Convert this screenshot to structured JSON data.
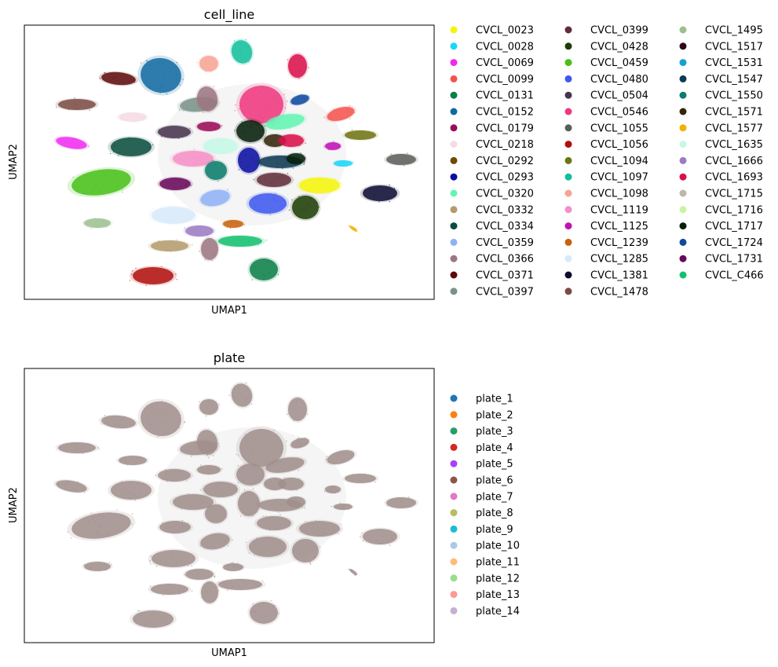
{
  "chart_data": [
    {
      "type": "scatter",
      "title": "cell_line",
      "xlabel": "UMAP1",
      "ylabel": "UMAP2",
      "legend_position": "right",
      "legend_columns": 3,
      "categories": [
        {
          "name": "CVCL_0023",
          "color": "#f5f50a"
        },
        {
          "name": "CVCL_0028",
          "color": "#1bd6f7"
        },
        {
          "name": "CVCL_0069",
          "color": "#f02bf0"
        },
        {
          "name": "CVCL_0099",
          "color": "#f4524f"
        },
        {
          "name": "CVCL_0131",
          "color": "#0a7f48"
        },
        {
          "name": "CVCL_0152",
          "color": "#116aa1"
        },
        {
          "name": "CVCL_0179",
          "color": "#9b0b58"
        },
        {
          "name": "CVCL_0218",
          "color": "#f6dbe3"
        },
        {
          "name": "CVCL_0292",
          "color": "#6f4a08"
        },
        {
          "name": "CVCL_0293",
          "color": "#0a0ea1"
        },
        {
          "name": "CVCL_0320",
          "color": "#62f5b2"
        },
        {
          "name": "CVCL_0332",
          "color": "#b49a6c"
        },
        {
          "name": "CVCL_0334",
          "color": "#0b4d3e"
        },
        {
          "name": "CVCL_0359",
          "color": "#8fb2f5"
        },
        {
          "name": "CVCL_0366",
          "color": "#9c7680"
        },
        {
          "name": "CVCL_0371",
          "color": "#5e0a0a"
        },
        {
          "name": "CVCL_0397",
          "color": "#7a9289"
        },
        {
          "name": "CVCL_0399",
          "color": "#5f2d3a"
        },
        {
          "name": "CVCL_0428",
          "color": "#1c3d05"
        },
        {
          "name": "CVCL_0459",
          "color": "#46c017"
        },
        {
          "name": "CVCL_0480",
          "color": "#3e58ef"
        },
        {
          "name": "CVCL_0504",
          "color": "#47344d"
        },
        {
          "name": "CVCL_0546",
          "color": "#f03780"
        },
        {
          "name": "CVCL_1055",
          "color": "#5a5e58"
        },
        {
          "name": "CVCL_1056",
          "color": "#b20f0d"
        },
        {
          "name": "CVCL_1094",
          "color": "#6e7413"
        },
        {
          "name": "CVCL_1097",
          "color": "#10bf9c"
        },
        {
          "name": "CVCL_1098",
          "color": "#f7a393"
        },
        {
          "name": "CVCL_1119",
          "color": "#f58fc8"
        },
        {
          "name": "CVCL_1125",
          "color": "#c012b5"
        },
        {
          "name": "CVCL_1239",
          "color": "#c9610a"
        },
        {
          "name": "CVCL_1285",
          "color": "#d8e9f9"
        },
        {
          "name": "CVCL_1381",
          "color": "#0a0a32"
        },
        {
          "name": "CVCL_1478",
          "color": "#7a4b45"
        },
        {
          "name": "CVCL_1495",
          "color": "#9cbf92"
        },
        {
          "name": "CVCL_1517",
          "color": "#2e0618"
        },
        {
          "name": "CVCL_1531",
          "color": "#12a3d1"
        },
        {
          "name": "CVCL_1547",
          "color": "#0d3954"
        },
        {
          "name": "CVCL_1550",
          "color": "#0b7d6a"
        },
        {
          "name": "CVCL_1571",
          "color": "#35260a"
        },
        {
          "name": "CVCL_1577",
          "color": "#f3b006"
        },
        {
          "name": "CVCL_1635",
          "color": "#c6f8e6"
        },
        {
          "name": "CVCL_1666",
          "color": "#9b7bc1"
        },
        {
          "name": "CVCL_1693",
          "color": "#d90f4a"
        },
        {
          "name": "CVCL_1715",
          "color": "#bfb7ab"
        },
        {
          "name": "CVCL_1716",
          "color": "#c8f59f"
        },
        {
          "name": "CVCL_1717",
          "color": "#061f0a"
        },
        {
          "name": "CVCL_1724",
          "color": "#0e4aa0"
        },
        {
          "name": "CVCL_1731",
          "color": "#67085a"
        },
        {
          "name": "CVCL_C466",
          "color": "#13c070"
        }
      ]
    },
    {
      "type": "scatter",
      "title": "plate",
      "xlabel": "UMAP1",
      "ylabel": "UMAP2",
      "legend_position": "right",
      "legend_columns": 1,
      "categories": [
        {
          "name": "plate_1",
          "color": "#1f77b4"
        },
        {
          "name": "plate_2",
          "color": "#ff7f0e"
        },
        {
          "name": "plate_3",
          "color": "#279e68"
        },
        {
          "name": "plate_4",
          "color": "#d62728"
        },
        {
          "name": "plate_5",
          "color": "#aa40fc"
        },
        {
          "name": "plate_6",
          "color": "#8c564b"
        },
        {
          "name": "plate_7",
          "color": "#e377c2"
        },
        {
          "name": "plate_8",
          "color": "#b5bd61"
        },
        {
          "name": "plate_9",
          "color": "#17becf"
        },
        {
          "name": "plate_10",
          "color": "#aec7e8"
        },
        {
          "name": "plate_11",
          "color": "#ffbb78"
        },
        {
          "name": "plate_12",
          "color": "#98df8a"
        },
        {
          "name": "plate_13",
          "color": "#ff9896"
        },
        {
          "name": "plate_14",
          "color": "#c5b0d5"
        }
      ]
    }
  ]
}
